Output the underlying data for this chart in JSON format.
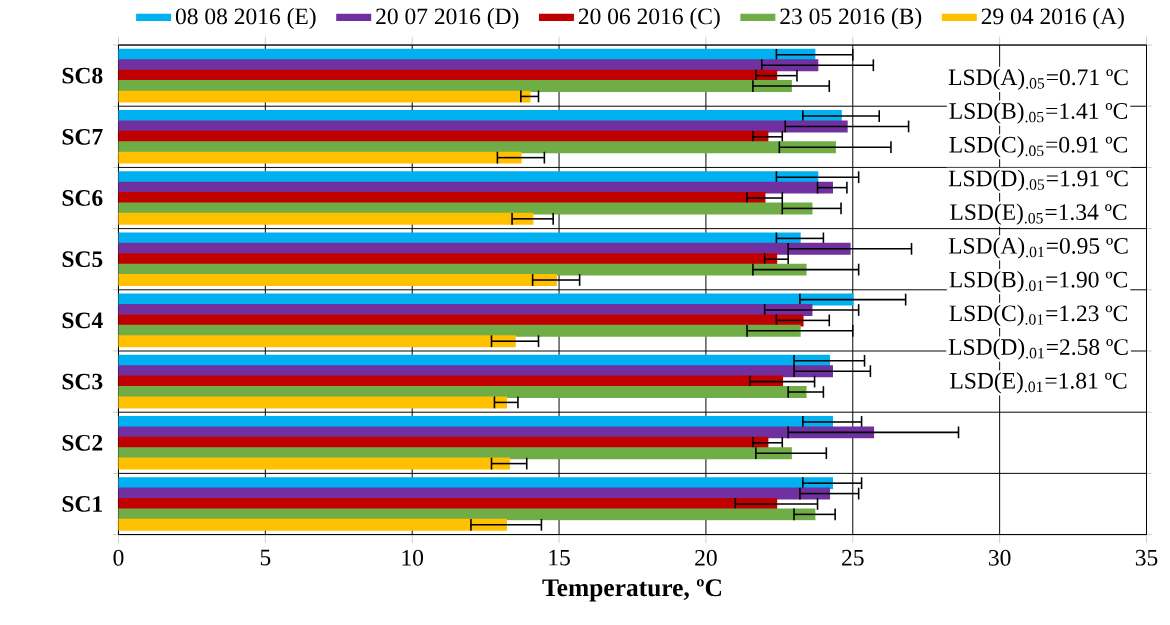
{
  "chart_data": {
    "type": "bar",
    "orientation": "horizontal",
    "xlabel": "Temperature, ºC",
    "categories": [
      "SC8",
      "SC7",
      "SC6",
      "SC5",
      "SC4",
      "SC3",
      "SC2",
      "SC1"
    ],
    "series": [
      {
        "name": "29 04 2016 (A)",
        "color": "#ffc000",
        "values": [
          14.0,
          13.7,
          14.1,
          14.9,
          13.5,
          13.2,
          13.3,
          13.2
        ],
        "errors": [
          0.3,
          0.8,
          0.7,
          0.8,
          0.8,
          0.4,
          0.6,
          1.2
        ]
      },
      {
        "name": "23 05 2016 (B)",
        "color": "#70ad47",
        "values": [
          22.9,
          24.4,
          23.6,
          23.4,
          23.2,
          23.4,
          22.9,
          23.7
        ],
        "errors": [
          1.3,
          1.9,
          1.0,
          1.8,
          1.8,
          0.6,
          1.2,
          0.7
        ]
      },
      {
        "name": "20 06 2016 (C)",
        "color": "#c00000",
        "values": [
          22.4,
          22.1,
          22.0,
          22.4,
          23.3,
          22.6,
          22.1,
          22.4
        ],
        "errors": [
          0.7,
          0.5,
          0.6,
          0.4,
          0.9,
          1.1,
          0.5,
          1.4
        ]
      },
      {
        "name": "20 07 2016 (D)",
        "color": "#7030a0",
        "values": [
          23.8,
          24.8,
          24.3,
          24.9,
          23.6,
          24.3,
          25.7,
          24.2
        ],
        "errors": [
          1.9,
          2.1,
          0.5,
          2.1,
          1.6,
          1.3,
          2.9,
          1.0
        ]
      },
      {
        "name": "08 08 2016 (E)",
        "color": "#00b0f0",
        "values": [
          23.7,
          24.6,
          23.8,
          23.2,
          25.0,
          24.2,
          24.3,
          24.3
        ],
        "errors": [
          1.3,
          1.3,
          1.4,
          0.8,
          1.8,
          1.2,
          1.0,
          1.0
        ]
      }
    ],
    "xlim": [
      0,
      35
    ],
    "xticks": [
      0,
      5,
      10,
      15,
      20,
      25,
      30,
      35
    ],
    "grid": true,
    "legend": "top",
    "annotations": [
      "LSD(A)$_{.05}$=0.71 ºC",
      "LSD(B)$_{.05}$=1.41 ºC",
      "LSD(C)$_{.05}$=0.91 ºC",
      "LSD(D)$_{.05}$=1.91 ºC",
      "LSD(E)$_{.05}$=1.34 ºC",
      "LSD(A)$_{.01}$=0.95 ºC",
      "LSD(B)$_{.01}$=1.90 ºC",
      "LSD(C)$_{.01}$=1.23 ºC",
      "LSD(D)$_{.01}$=2.58 ºC",
      "LSD(E)$_{.01}$=1.81 ºC"
    ]
  }
}
